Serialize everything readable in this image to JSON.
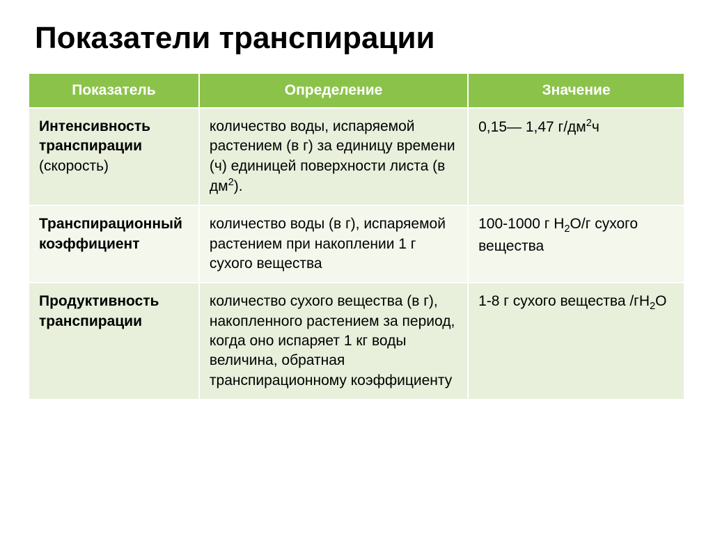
{
  "slide": {
    "title": "Показатели транспирации",
    "background_color": "#ffffff",
    "title_color": "#000000",
    "title_fontsize": 44
  },
  "table": {
    "type": "table",
    "header_bg": "#8bc34a",
    "header_text_color": "#ffffff",
    "row_odd_bg": "#e8efdb",
    "row_even_bg": "#f3f7ec",
    "border_color": "#ffffff",
    "cell_fontsize": 21,
    "column_widths_pct": [
      26,
      41,
      33
    ],
    "columns": [
      "Показатель",
      "Определение",
      "Значение"
    ],
    "rows": [
      {
        "indicator_bold": "Интенсивность транспирации",
        "indicator_rest": " (скорость)",
        "definition": "количество воды, испаряемой растением (в г) за единицу времени (ч) единицей поверхности листа (в дм",
        "definition_sup": "2",
        "definition_tail": ").",
        "value_pre": "0,15— 1,47 г/дм",
        "value_sup": "2",
        "value_post": "ч"
      },
      {
        "indicator_bold": "Транспирационный коэффициент",
        "indicator_rest": "",
        "definition": "количество воды (в г), испаряемой растением при накоплении 1 г сухого вещества",
        "value_pre": "100-1000 г Н",
        "value_sub1": "2",
        "value_mid": "О/г сухого вещества",
        "value_sup": "",
        "value_post": ""
      },
      {
        "indicator_bold": "Продуктивность транспирации",
        "indicator_rest": "",
        "definition": "количество сухого вещества (в г), накопленного растением за период, когда оно испаряет 1 кг воды величина, обратная транспирационному коэффициенту",
        "value_pre": "1-8 г сухого вещества /гН",
        "value_sub1": "2",
        "value_mid": "О",
        "value_sup": "",
        "value_post": ""
      }
    ]
  }
}
